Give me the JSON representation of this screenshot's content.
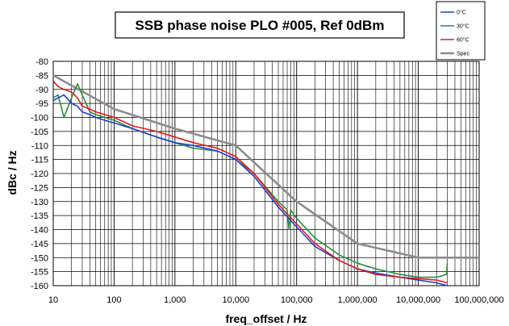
{
  "chart_data": {
    "type": "line",
    "title": "SSB phase noise PLO #005, Ref 0dBm",
    "xlabel": "freq_offset / Hz",
    "ylabel": "dBc / Hz",
    "xscale": "log",
    "xlim": [
      10,
      100000000
    ],
    "ylim": [
      -160,
      -80
    ],
    "xticks": [
      10,
      100,
      1000,
      10000,
      100000,
      1000000,
      10000000,
      100000000
    ],
    "xtick_labels": [
      "10",
      "100",
      "1,000",
      "10,000",
      "100,000",
      "1,000,000",
      "10,000,000",
      "100,000,000"
    ],
    "yticks": [
      -80,
      -85,
      -90,
      -95,
      -100,
      -105,
      -110,
      -115,
      -120,
      -125,
      -130,
      -135,
      -140,
      -145,
      -150,
      -155,
      -160
    ],
    "grid": true,
    "legend_position": "top-right",
    "series": [
      {
        "name": "0°C",
        "color": "#1f3fd6",
        "x": [
          10,
          12,
          15,
          20,
          25,
          30,
          40,
          50,
          70,
          100,
          200,
          500,
          1000,
          2000,
          5000,
          10000,
          20000,
          50000,
          100000,
          200000,
          500000,
          1000000,
          2000000,
          5000000,
          10000000,
          20000000,
          30000000
        ],
        "y": [
          -94,
          -93,
          -92,
          -95,
          -96,
          -98,
          -99,
          -100,
          -101,
          -102,
          -104,
          -107,
          -109,
          -110,
          -112,
          -115,
          -121,
          -132,
          -139,
          -146,
          -151,
          -154,
          -155.5,
          -157,
          -158,
          -159,
          -160
        ]
      },
      {
        "name": "30°C",
        "color": "#2e8b3e",
        "x": [
          10,
          12,
          15,
          20,
          25,
          30,
          40,
          50,
          70,
          100,
          200,
          500,
          1000,
          2000,
          5000,
          10000,
          20000,
          50000,
          70000,
          75000,
          80000,
          100000,
          200000,
          500000,
          1000000,
          2000000,
          5000000,
          10000000,
          20000000,
          29000000,
          30000000
        ],
        "y": [
          -93,
          -92,
          -100,
          -93,
          -88,
          -92,
          -98,
          -99,
          -100,
          -101,
          -104,
          -107,
          -109,
          -111,
          -112,
          -115,
          -120,
          -130,
          -133,
          -140,
          -133,
          -136,
          -143,
          -149,
          -152,
          -154,
          -156,
          -157,
          -157,
          -156,
          -152
        ]
      },
      {
        "name": "60°C",
        "color": "#e01b1b",
        "x": [
          10,
          12,
          15,
          20,
          25,
          30,
          40,
          50,
          70,
          100,
          200,
          500,
          1000,
          2000,
          5000,
          10000,
          20000,
          50000,
          100000,
          200000,
          500000,
          1000000,
          2000000,
          5000000,
          10000000,
          20000000,
          30000000
        ],
        "y": [
          -87,
          -89,
          -90,
          -91,
          -93,
          -96,
          -97,
          -98,
          -99,
          -100,
          -103,
          -105,
          -107,
          -109,
          -111,
          -114,
          -120,
          -131,
          -138,
          -145,
          -151,
          -154,
          -156,
          -157,
          -157.5,
          -158,
          -159
        ]
      },
      {
        "name": "Spec",
        "color": "#8c8c8c",
        "x": [
          10,
          100,
          1000,
          10000,
          100000,
          1000000,
          10000000,
          100000000
        ],
        "y": [
          -85,
          -97,
          -104,
          -110,
          -130,
          -145,
          -150,
          -150
        ]
      }
    ]
  }
}
